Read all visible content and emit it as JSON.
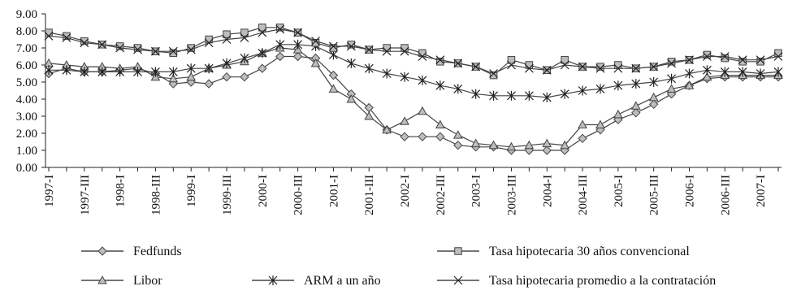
{
  "chart_data": {
    "type": "line",
    "title": "",
    "xlabel": "",
    "ylabel": "",
    "ylim": [
      0,
      9
    ],
    "y_ticks": [
      "0.00",
      "1.00",
      "2.00",
      "3.00",
      "4.00",
      "5.00",
      "6.00",
      "7.00",
      "8.00",
      "9.00"
    ],
    "x": [
      "1997-I",
      "1997-II",
      "1997-III",
      "1997-IV",
      "1998-I",
      "1998-II",
      "1998-III",
      "1998-IV",
      "1999-I",
      "1999-II",
      "1999-III",
      "1999-IV",
      "2000-I",
      "2000-II",
      "2000-III",
      "2000-IV",
      "2001-I",
      "2001-II",
      "2001-III",
      "2001-IV",
      "2002-I",
      "2002-II",
      "2002-III",
      "2002-IV",
      "2003-I",
      "2003-II",
      "2003-III",
      "2003-IV",
      "2004-I",
      "2004-II",
      "2004-III",
      "2004-IV",
      "2005-I",
      "2005-II",
      "2005-III",
      "2005-IV",
      "2006-I",
      "2006-II",
      "2006-III",
      "2006-IV",
      "2007-I",
      "2007-II"
    ],
    "x_tick_labels": [
      "1997-I",
      "1997-III",
      "1998-I",
      "1998-III",
      "1999-I",
      "1999-III",
      "2000-I",
      "2000-III",
      "2001-I",
      "2001-III",
      "2002-I",
      "2002-III",
      "2003-I",
      "2003-III",
      "2004-I",
      "2004-III",
      "2005-I",
      "2005-III",
      "2006-I",
      "2006-III",
      "2007-I"
    ],
    "legend_position": "bottom",
    "grid": false,
    "series": [
      {
        "name": "Fedfunds",
        "marker": "diamond",
        "values": [
          5.5,
          5.8,
          5.6,
          5.6,
          5.7,
          5.8,
          5.5,
          4.9,
          5.0,
          4.9,
          5.3,
          5.3,
          5.8,
          6.5,
          6.5,
          6.4,
          5.4,
          4.3,
          3.5,
          2.2,
          1.8,
          1.8,
          1.8,
          1.3,
          1.2,
          1.2,
          1.0,
          1.0,
          1.0,
          1.0,
          1.7,
          2.2,
          2.8,
          3.2,
          3.7,
          4.3,
          4.8,
          5.2,
          5.3,
          5.3,
          5.3,
          5.3
        ]
      },
      {
        "name": "Libor",
        "marker": "triangle",
        "values": [
          6.1,
          6.0,
          5.9,
          5.9,
          5.8,
          5.9,
          5.3,
          5.2,
          5.3,
          5.8,
          6.0,
          6.2,
          6.7,
          7.0,
          6.9,
          6.1,
          4.6,
          4.0,
          3.0,
          2.2,
          2.7,
          3.3,
          2.5,
          1.9,
          1.4,
          1.3,
          1.2,
          1.3,
          1.4,
          1.3,
          2.5,
          2.5,
          3.1,
          3.6,
          4.1,
          4.6,
          4.8,
          5.3,
          5.4,
          5.4,
          5.4,
          5.4
        ]
      },
      {
        "name": "ARM a un año",
        "marker": "star",
        "values": [
          5.7,
          5.7,
          5.6,
          5.6,
          5.6,
          5.6,
          5.6,
          5.6,
          5.8,
          5.8,
          6.1,
          6.4,
          6.7,
          7.2,
          7.2,
          7.1,
          6.6,
          6.1,
          5.8,
          5.5,
          5.3,
          5.1,
          4.8,
          4.6,
          4.3,
          4.2,
          4.2,
          4.2,
          4.1,
          4.3,
          4.5,
          4.6,
          4.8,
          4.9,
          5.0,
          5.2,
          5.5,
          5.7,
          5.6,
          5.6,
          5.5,
          5.6
        ]
      },
      {
        "name": "Tasa hipotecaria 30 años convencional",
        "marker": "square",
        "values": [
          7.9,
          7.7,
          7.4,
          7.2,
          7.1,
          7.0,
          6.8,
          6.7,
          7.0,
          7.5,
          7.8,
          7.9,
          8.2,
          8.2,
          7.9,
          7.3,
          7.0,
          7.2,
          6.9,
          7.0,
          7.0,
          6.7,
          6.2,
          6.1,
          5.9,
          5.4,
          6.3,
          6.0,
          5.7,
          6.3,
          5.9,
          5.9,
          6.0,
          5.8,
          5.9,
          6.2,
          6.3,
          6.6,
          6.4,
          6.2,
          6.2,
          6.7
        ]
      },
      {
        "name": "Tasa hipotecaria promedio a la contratación",
        "marker": "x",
        "values": [
          7.7,
          7.6,
          7.3,
          7.2,
          7.0,
          6.9,
          6.8,
          6.8,
          6.9,
          7.3,
          7.5,
          7.6,
          7.9,
          8.1,
          7.9,
          7.4,
          7.1,
          7.1,
          6.9,
          6.8,
          6.8,
          6.5,
          6.3,
          6.1,
          5.9,
          5.5,
          6.0,
          5.8,
          5.7,
          6.0,
          5.9,
          5.8,
          5.8,
          5.8,
          5.9,
          6.1,
          6.3,
          6.5,
          6.5,
          6.3,
          6.3,
          6.5
        ]
      }
    ]
  }
}
